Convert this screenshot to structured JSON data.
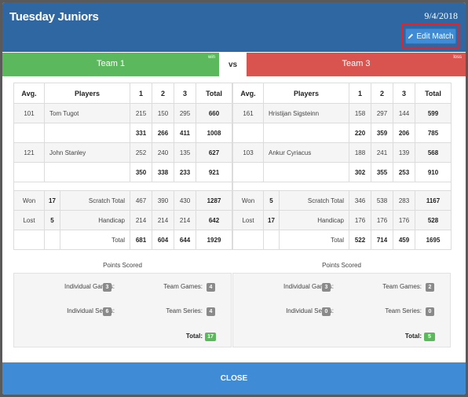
{
  "header": {
    "title": "Tuesday Juniors",
    "date": "9/4/2018",
    "edit_label": "Edit Match"
  },
  "teams": {
    "left": {
      "name": "Team 1",
      "result": "win"
    },
    "vs": "vs",
    "right": {
      "name": "Team 3",
      "result": "loss"
    }
  },
  "columns": {
    "avg": "Avg.",
    "players": "Players",
    "g1": "1",
    "g2": "2",
    "g3": "3",
    "total": "Total"
  },
  "left": {
    "p1": {
      "avg": "101",
      "name": "Tom Tugot",
      "g1": "215",
      "g2": "150",
      "g3": "295",
      "total": "660"
    },
    "r1": {
      "g1": "331",
      "g2": "266",
      "g3": "411",
      "total": "1008"
    },
    "p2": {
      "avg": "121",
      "name": "John Stanley",
      "g1": "252",
      "g2": "240",
      "g3": "135",
      "total": "627"
    },
    "r2": {
      "g1": "350",
      "g2": "338",
      "g3": "233",
      "total": "921"
    },
    "won": {
      "label": "Won",
      "num": "17",
      "desc": "Scratch Total",
      "g1": "467",
      "g2": "390",
      "g3": "430",
      "total": "1287"
    },
    "lost": {
      "label": "Lost",
      "num": "5",
      "desc": "Handicap",
      "g1": "214",
      "g2": "214",
      "g3": "214",
      "total": "642"
    },
    "tot": {
      "desc": "Total",
      "g1": "681",
      "g2": "604",
      "g3": "644",
      "total": "1929"
    },
    "points": {
      "ig": "3",
      "tg": "4",
      "is": "6",
      "ts": "4",
      "total": "17"
    }
  },
  "right": {
    "p1": {
      "avg": "161",
      "name": "Hristijan Sigsteinn",
      "g1": "158",
      "g2": "297",
      "g3": "144",
      "total": "599"
    },
    "r1": {
      "g1": "220",
      "g2": "359",
      "g3": "206",
      "total": "785"
    },
    "p2": {
      "avg": "103",
      "name": "Ankur Cyriacus",
      "g1": "188",
      "g2": "241",
      "g3": "139",
      "total": "568"
    },
    "r2": {
      "g1": "302",
      "g2": "355",
      "g3": "253",
      "total": "910"
    },
    "won": {
      "label": "Won",
      "num": "5",
      "desc": "Scratch Total",
      "g1": "346",
      "g2": "538",
      "g3": "283",
      "total": "1167"
    },
    "lost": {
      "label": "Lost",
      "num": "17",
      "desc": "Handicap",
      "g1": "176",
      "g2": "176",
      "g3": "176",
      "total": "528"
    },
    "tot": {
      "desc": "Total",
      "g1": "522",
      "g2": "714",
      "g3": "459",
      "total": "1695"
    },
    "points": {
      "ig": "3",
      "tg": "2",
      "is": "0",
      "ts": "0",
      "total": "5"
    }
  },
  "points_labels": {
    "heading": "Points Scored",
    "ig": "Individual Games:",
    "tg": "Team Games:",
    "is": "Individual Series:",
    "ts": "Team Series:",
    "total": "Total:"
  },
  "footer": {
    "close_label": "CLOSE"
  },
  "colors": {
    "header": "#2f67a3",
    "win": "#5cb85c",
    "loss": "#d9534f",
    "button": "#3f8bd6",
    "highlight": "#e0242b"
  }
}
